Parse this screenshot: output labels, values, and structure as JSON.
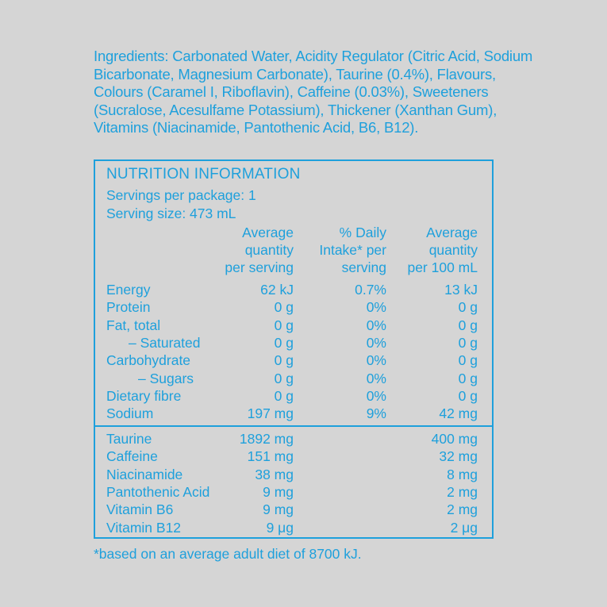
{
  "ingredients": "Ingredients: Carbonated Water, Acidity Regulator (Citric Acid, Sodium Bicarbonate, Magnesium Carbonate), Taurine (0.4%), Flavours, Colours (Caramel I, Riboflavin), Caffeine (0.03%), Sweeteners (Sucralose, Acesulfame Potassium), Thickener (Xanthan Gum), Vitamins (Niacinamide, Pantothenic Acid, B6, B12).",
  "panel": {
    "title": "NUTRITION INFORMATION",
    "servings_per_package": "Servings per package: 1",
    "serving_size": "Serving size: 473 mL",
    "headers": {
      "col1": [
        "Average",
        "quantity",
        "per serving"
      ],
      "col2": [
        "% Daily",
        "Intake* per",
        "serving"
      ],
      "col3": [
        "Average",
        "quantity",
        "per 100 mL"
      ]
    },
    "rows": [
      {
        "label": "Energy",
        "per_serving": "62 kJ",
        "daily": "0.7%",
        "per_100ml": "13 kJ",
        "indent": 0
      },
      {
        "label": "Protein",
        "per_serving": "0 g",
        "daily": "0%",
        "per_100ml": "0 g",
        "indent": 0
      },
      {
        "label": "Fat, total",
        "per_serving": "0 g",
        "daily": "0%",
        "per_100ml": "0 g",
        "indent": 0
      },
      {
        "label": "– Saturated",
        "per_serving": "0 g",
        "daily": "0%",
        "per_100ml": "0 g",
        "indent": 1
      },
      {
        "label": "Carbohydrate",
        "per_serving": "0 g",
        "daily": "0%",
        "per_100ml": "0 g",
        "indent": 0
      },
      {
        "label": "– Sugars",
        "per_serving": "0 g",
        "daily": "0%",
        "per_100ml": "0 g",
        "indent": 2
      },
      {
        "label": "Dietary fibre",
        "per_serving": "0 g",
        "daily": "0%",
        "per_100ml": "0 g",
        "indent": 0
      },
      {
        "label": "Sodium",
        "per_serving": "197 mg",
        "daily": "9%",
        "per_100ml": "42 mg",
        "indent": 0
      }
    ],
    "extra_rows": [
      {
        "label": "Taurine",
        "per_serving": "1892 mg",
        "per_100ml": "400 mg"
      },
      {
        "label": "Caffeine",
        "per_serving": "151 mg",
        "per_100ml": "32 mg"
      },
      {
        "label": "Niacinamide",
        "per_serving": "38 mg",
        "per_100ml": "8 mg"
      },
      {
        "label": "Pantothenic Acid",
        "per_serving": "9 mg",
        "per_100ml": "2 mg"
      },
      {
        "label": "Vitamin B6",
        "per_serving": "9 mg",
        "per_100ml": "2 mg"
      },
      {
        "label": "Vitamin B12",
        "per_serving": "9 μg",
        "per_100ml": "2 μg"
      }
    ]
  },
  "footnote": "*based on an average adult diet of 8700 kJ.",
  "colors": {
    "text": "#1ea0dc",
    "background": "#d5d5d5"
  }
}
